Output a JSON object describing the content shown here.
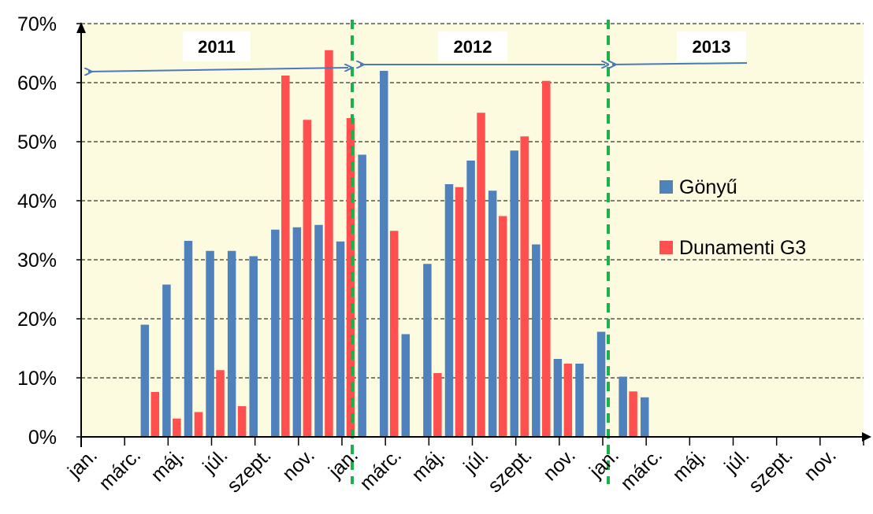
{
  "chart_data": {
    "type": "bar",
    "ylim": [
      0,
      0.7
    ],
    "yticks": [
      "0%",
      "10%",
      "20%",
      "30%",
      "40%",
      "50%",
      "60%",
      "70%"
    ],
    "xtick_labels": [
      "jan.",
      "márc.",
      "máj.",
      "júl.",
      "szept.",
      "nov.",
      "jan.",
      "márc.",
      "máj.",
      "júl.",
      "szept.",
      "nov.",
      "jan.",
      "márc.",
      "máj.",
      "júl.",
      "szept.",
      "nov."
    ],
    "months": [
      "2011-01",
      "2011-02",
      "2011-03",
      "2011-04",
      "2011-05",
      "2011-06",
      "2011-07",
      "2011-08",
      "2011-09",
      "2011-10",
      "2011-11",
      "2011-12",
      "2012-01",
      "2012-02",
      "2012-03",
      "2012-04",
      "2012-05",
      "2012-06",
      "2012-07",
      "2012-08",
      "2012-09",
      "2012-10",
      "2012-11",
      "2012-12",
      "2013-01",
      "2013-02",
      "2013-03",
      "2013-04",
      "2013-05",
      "2013-06",
      "2013-07",
      "2013-08",
      "2013-09",
      "2013-10",
      "2013-11",
      "2013-12"
    ],
    "series": [
      {
        "name": "Gönyű",
        "color": "#4f81bd",
        "values": [
          null,
          null,
          0.19,
          0.258,
          0.332,
          0.315,
          0.315,
          0.306,
          0.351,
          0.355,
          0.359,
          0.331,
          0.478,
          0.62,
          0.174,
          0.293,
          0.428,
          0.468,
          0.417,
          0.485,
          0.326,
          0.132,
          0.124,
          0.178,
          0.102,
          0.067,
          null,
          null,
          null,
          null,
          null,
          null,
          null,
          null,
          null,
          null
        ]
      },
      {
        "name": "Dunamenti G3",
        "color": "#ff4f4f",
        "values": [
          null,
          null,
          0.076,
          0.031,
          0.042,
          0.113,
          0.052,
          null,
          0.612,
          0.537,
          0.655,
          0.54,
          null,
          0.349,
          null,
          0.108,
          0.423,
          0.549,
          0.374,
          0.509,
          0.603,
          0.124,
          null,
          null,
          0.077,
          null,
          null,
          null,
          null,
          null,
          null,
          null,
          null,
          null,
          null,
          null
        ]
      }
    ],
    "years": [
      "2011",
      "2012",
      "2013"
    ],
    "grid": true,
    "legend_position": "right"
  }
}
